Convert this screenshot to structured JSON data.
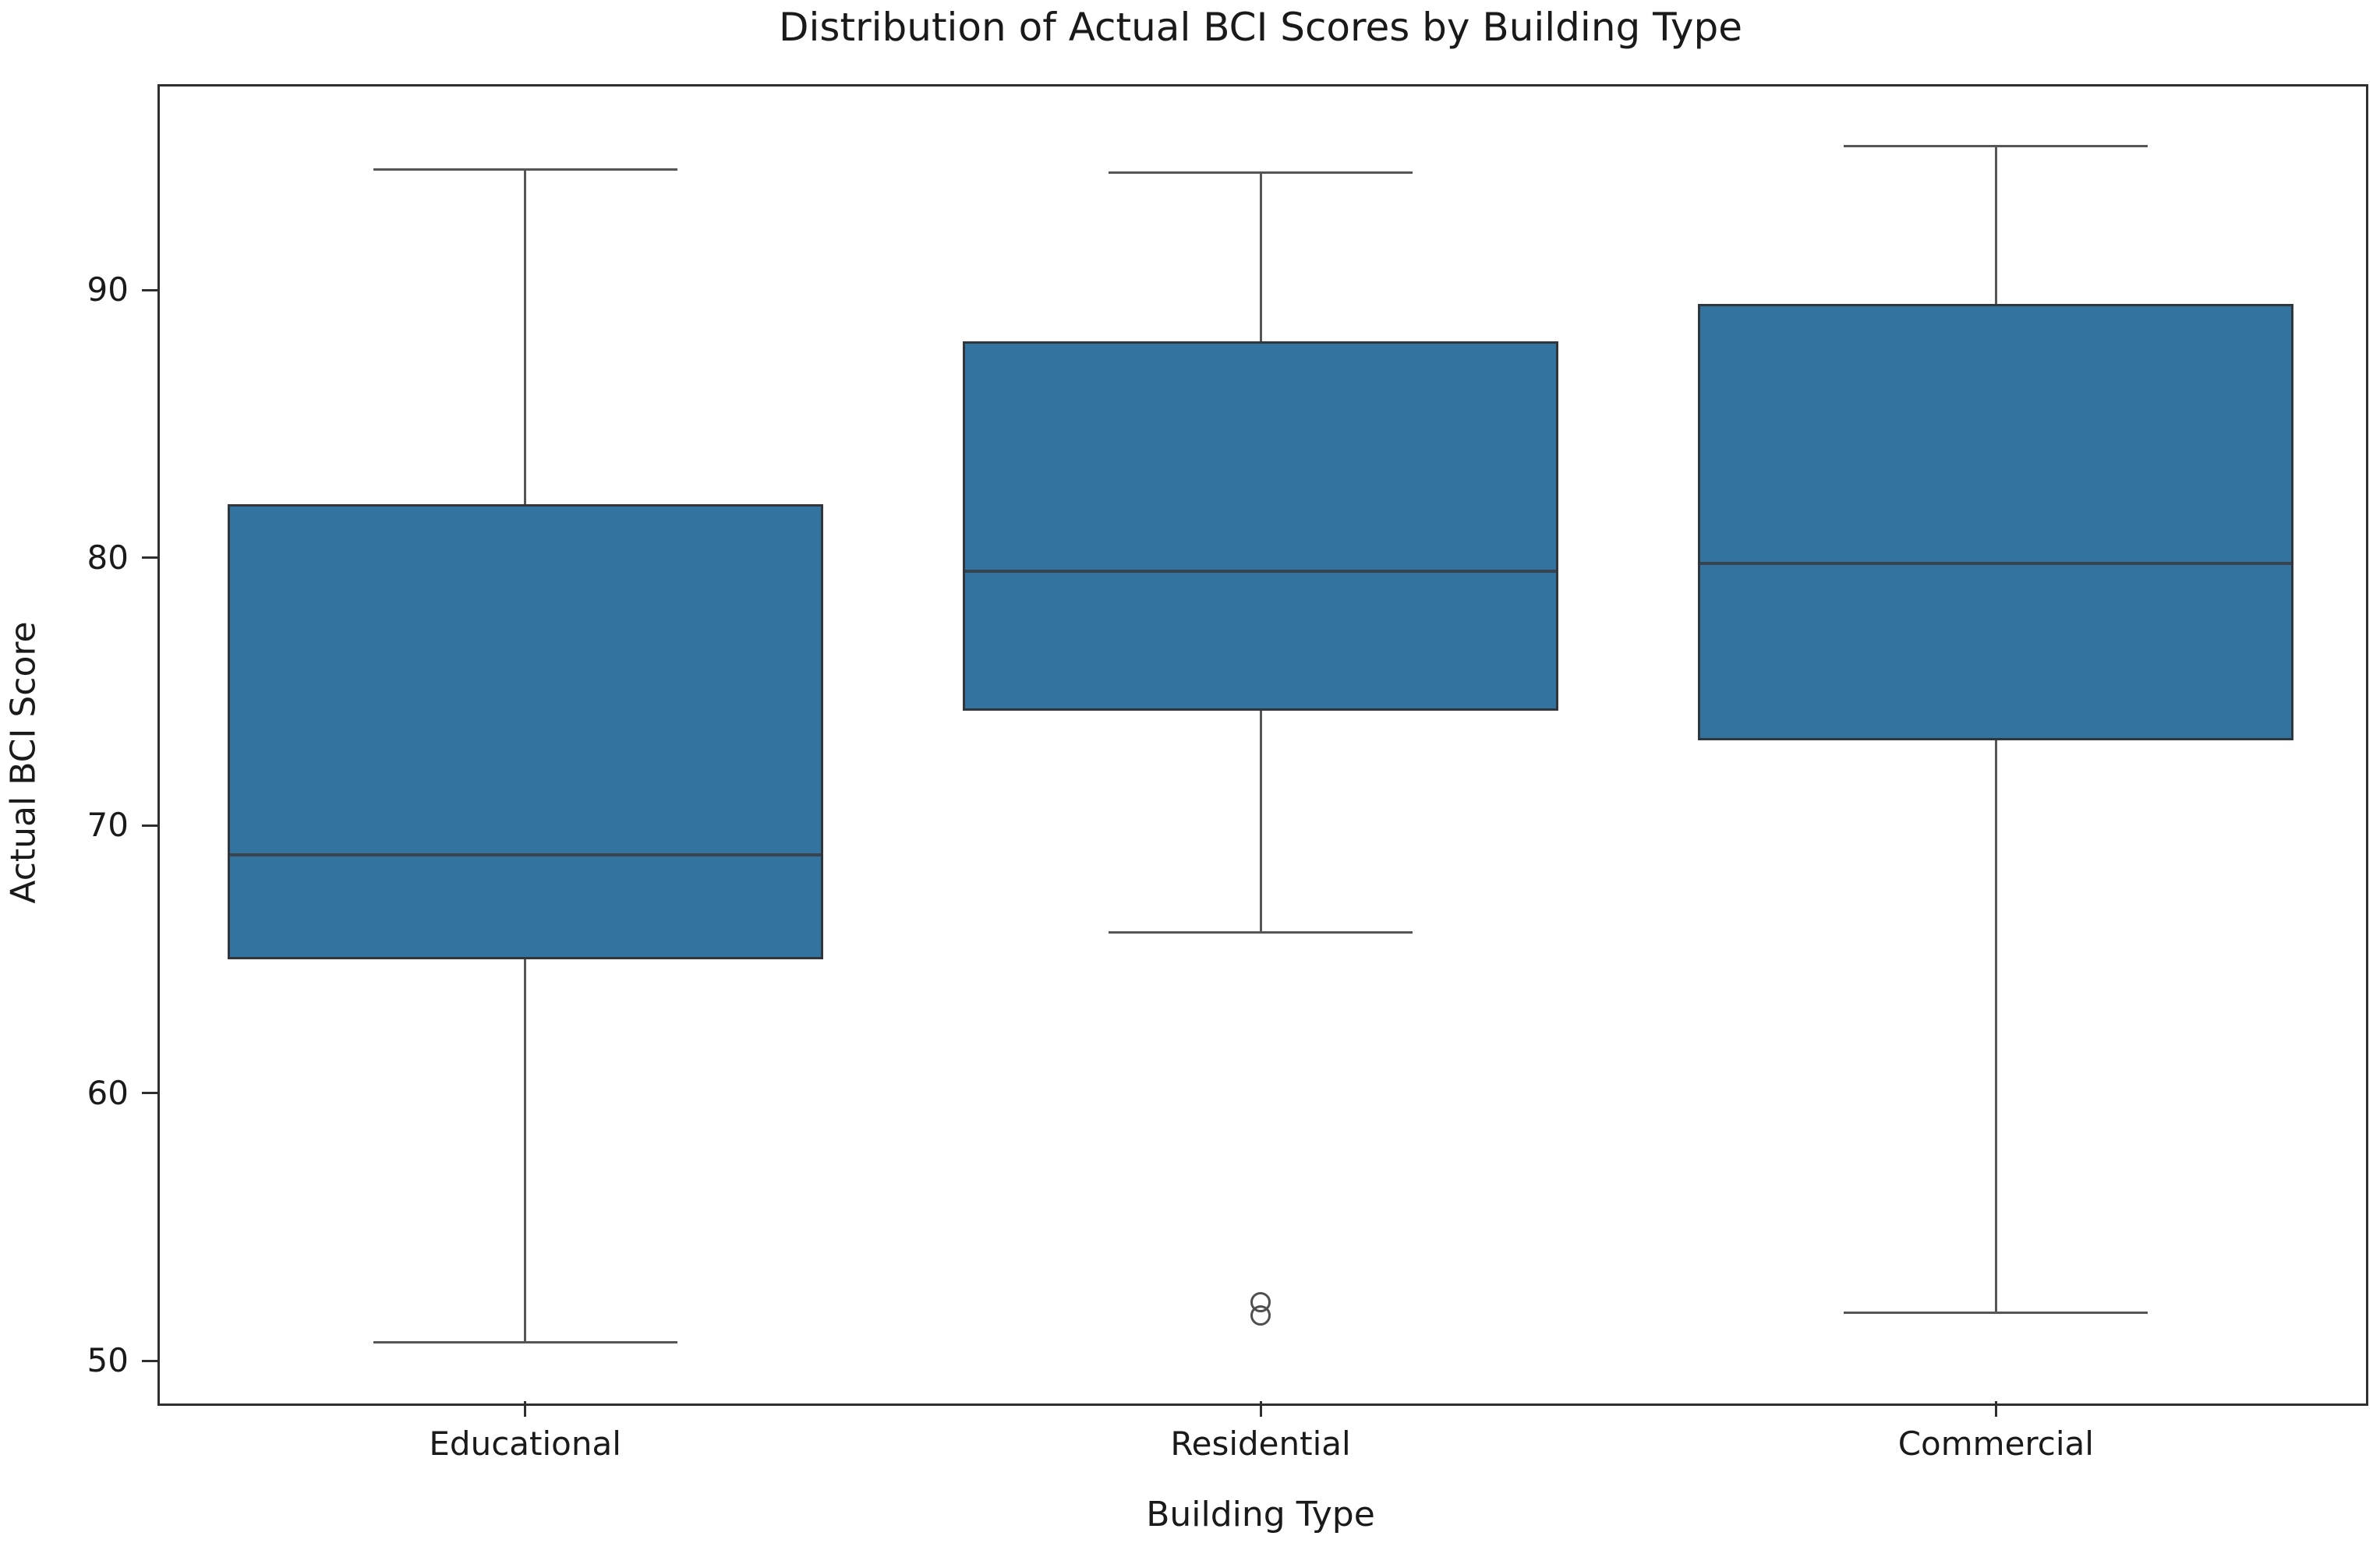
{
  "chart_data": {
    "type": "boxplot",
    "title": "Distribution of Actual BCI Scores by Building Type",
    "xlabel": "Building Type",
    "ylabel": "Actual BCI Score",
    "categories": [
      "Educational",
      "Residential",
      "Commercial"
    ],
    "yticks": [
      90,
      80,
      70,
      60,
      50
    ],
    "ylim": [
      48.5,
      97.7
    ],
    "grid": false,
    "legend": null,
    "series": [
      {
        "name": "Educational",
        "whisker_low": 50.7,
        "q1": 65.0,
        "median": 68.9,
        "q3": 82.0,
        "whisker_high": 94.5,
        "outliers": []
      },
      {
        "name": "Residential",
        "whisker_low": 66.0,
        "q1": 74.3,
        "median": 79.5,
        "q3": 88.1,
        "whisker_high": 94.4,
        "outliers": [
          52.2,
          51.7
        ]
      },
      {
        "name": "Commercial",
        "whisker_low": 51.8,
        "q1": 73.2,
        "median": 79.8,
        "q3": 89.5,
        "whisker_high": 95.4,
        "outliers": []
      }
    ],
    "colors": {
      "box_fill": "#3273a0",
      "box_edge": "#30363c",
      "median": "#39434e",
      "whisker": "#565656",
      "spine": "#2f2f2f",
      "text": "#1a1a1a",
      "background": "#ffffff"
    }
  }
}
